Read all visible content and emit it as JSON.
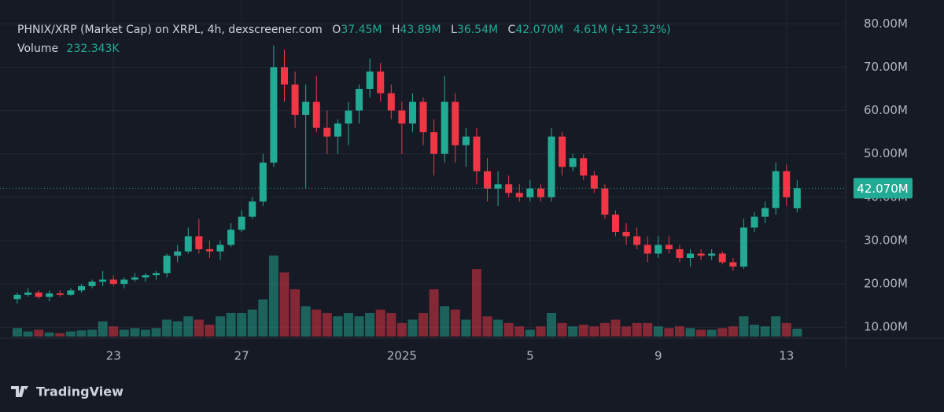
{
  "chart_data": {
    "type": "candlestick",
    "title": "PHNIX/XRP (Market Cap) on XRPL, 4h, dexscreener.com",
    "readout": {
      "open": {
        "key": "O",
        "value": 37.45,
        "label": "37.45M"
      },
      "high": {
        "key": "H",
        "value": 43.89,
        "label": "43.89M"
      },
      "low": {
        "key": "L",
        "value": 36.54,
        "label": "36.54M"
      },
      "close": {
        "key": "C",
        "value": 42.07,
        "label": "42.070M"
      },
      "change": "4.61M (+12.32%)"
    },
    "volume_readout": {
      "name": "Volume",
      "value": 232.343,
      "label": "232.343K"
    },
    "last_price": {
      "value": 42.07,
      "label": "42.070M"
    },
    "brand": "TradingView",
    "up_color": "#22ab94",
    "down_color": "#f23645",
    "grid": true,
    "ylim": [
      7.5,
      85.5
    ],
    "yticks": [
      {
        "value": 80,
        "label": "80.00M"
      },
      {
        "value": 70,
        "label": "70.00M"
      },
      {
        "value": 60,
        "label": "60.00M"
      },
      {
        "value": 50,
        "label": "50.00M"
      },
      {
        "value": 40,
        "label": "40.00M"
      },
      {
        "value": 30,
        "label": "30.00M"
      },
      {
        "value": 20,
        "label": "20.00M"
      },
      {
        "value": 10,
        "label": "10.00M"
      }
    ],
    "categories": [
      null,
      null,
      null,
      null,
      null,
      null,
      null,
      null,
      null,
      "23",
      null,
      null,
      null,
      null,
      null,
      null,
      null,
      null,
      null,
      null,
      null,
      "27",
      null,
      null,
      null,
      null,
      null,
      null,
      null,
      null,
      null,
      null,
      null,
      null,
      null,
      null,
      "2025",
      null,
      null,
      null,
      null,
      null,
      null,
      null,
      null,
      null,
      null,
      null,
      "5",
      null,
      null,
      null,
      null,
      null,
      null,
      null,
      null,
      null,
      null,
      null,
      "9",
      null,
      null,
      null,
      null,
      null,
      null,
      null,
      null,
      null,
      null,
      null,
      "13",
      null
    ],
    "open": [
      16.5,
      17.5,
      18,
      17,
      17.8,
      17.5,
      18.5,
      19.5,
      20.5,
      21,
      20,
      21,
      21.5,
      22,
      22.5,
      26.5,
      27.5,
      31,
      28,
      27.5,
      29,
      32.5,
      35.5,
      39,
      48,
      70,
      66,
      59,
      62,
      56,
      54,
      57,
      60,
      65,
      69,
      64,
      60,
      57,
      62,
      55,
      50,
      62,
      52,
      54,
      46,
      42,
      43,
      41,
      40,
      42,
      40,
      54,
      47,
      49,
      45,
      42,
      36,
      32,
      31,
      29,
      27,
      29,
      28,
      26,
      27,
      26.5,
      27,
      25,
      24,
      33,
      35.5,
      37.5,
      46,
      37.45
    ],
    "high": [
      18,
      19,
      18.5,
      18.5,
      18.5,
      19,
      20,
      21,
      23,
      22,
      21.5,
      22.5,
      22.5,
      23,
      27,
      29,
      33,
      35,
      30,
      30,
      34,
      37,
      40,
      50,
      75,
      74,
      69,
      66,
      68,
      60,
      58,
      62,
      66,
      72,
      71,
      66,
      62,
      64,
      63,
      58,
      68,
      64,
      56,
      56,
      49,
      46,
      45,
      43,
      44,
      43,
      56,
      55,
      50,
      50,
      46,
      43,
      37,
      34,
      33,
      31,
      31,
      31,
      29,
      28,
      28,
      28,
      27.5,
      26,
      35,
      36.5,
      39,
      48,
      47.5,
      43.89
    ],
    "low": [
      15.5,
      17,
      16.5,
      16,
      17,
      17.3,
      18,
      19,
      19.5,
      19.5,
      19,
      20.5,
      20.5,
      21,
      21.5,
      25,
      27,
      27,
      26,
      25.5,
      28.5,
      32,
      35,
      38,
      47,
      62,
      56,
      42,
      55,
      50,
      50,
      52,
      57,
      63,
      62,
      58,
      50,
      55,
      52,
      45,
      48,
      48,
      47,
      43,
      39,
      38,
      40,
      39,
      39,
      39,
      39,
      45,
      46,
      44,
      41,
      35,
      31,
      29,
      28,
      25,
      26,
      27,
      25,
      24,
      25.5,
      25.5,
      24.5,
      23,
      23.5,
      32,
      34,
      36,
      38,
      36.54
    ],
    "close": [
      17.5,
      18,
      17,
      17.8,
      17.5,
      18.5,
      19.5,
      20.5,
      21,
      20,
      21,
      21.5,
      22,
      22.5,
      26.5,
      27.5,
      31,
      28,
      27.5,
      29,
      32.5,
      35.5,
      39,
      48,
      70,
      66,
      59,
      62,
      56,
      54,
      57,
      60,
      65,
      69,
      64,
      60,
      57,
      62,
      55,
      50,
      62,
      52,
      54,
      46,
      42,
      43,
      41,
      40,
      42,
      40,
      54,
      47,
      49,
      45,
      42,
      36,
      32,
      31,
      29,
      27,
      29,
      28,
      26,
      27,
      26.5,
      27,
      25,
      24,
      33,
      35.5,
      37.5,
      46,
      40,
      42.07
    ],
    "volume": [
      250,
      150,
      200,
      120,
      100,
      150,
      180,
      200,
      450,
      300,
      200,
      250,
      200,
      250,
      500,
      450,
      600,
      500,
      350,
      600,
      700,
      700,
      800,
      1100,
      2400,
      1900,
      1400,
      900,
      800,
      700,
      600,
      700,
      600,
      700,
      800,
      700,
      400,
      500,
      700,
      1400,
      900,
      800,
      500,
      2000,
      600,
      500,
      400,
      300,
      200,
      300,
      700,
      400,
      300,
      350,
      300,
      400,
      500,
      300,
      400,
      400,
      300,
      250,
      300,
      250,
      200,
      200,
      250,
      300,
      600,
      350,
      300,
      600,
      400,
      232.343
    ]
  }
}
